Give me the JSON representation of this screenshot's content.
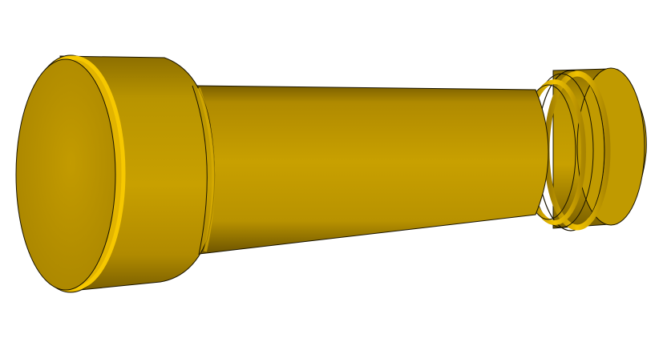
{
  "scene": {
    "subject": "cad-model",
    "background_color": "#ffffff",
    "colors": {
      "base": "#c9a000",
      "highlight": "#f4c400",
      "shadow": "#6e5600",
      "edge": "#1a1400",
      "face": "#bb9300"
    }
  }
}
